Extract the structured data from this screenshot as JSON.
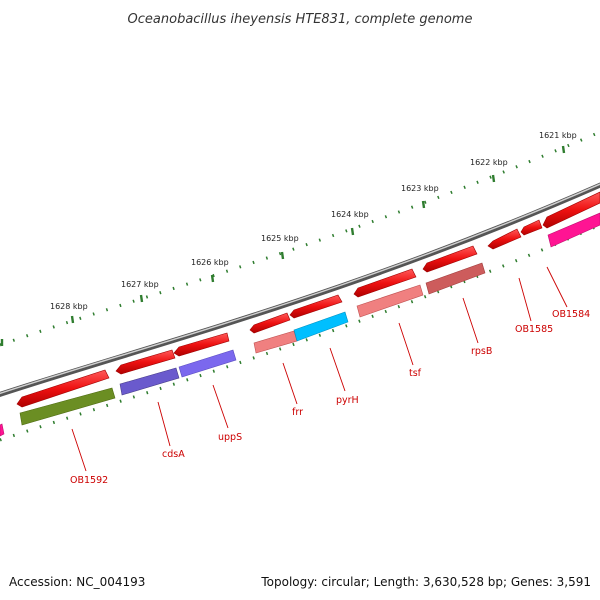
{
  "title": "Oceanobacillus iheyensis HTE831, complete genome",
  "footer": {
    "accession": "Accession: NC_004193",
    "topology": "Topology: circular; Length: 3,630,528 bp; Genes: 3,591"
  },
  "colors": {
    "forward_gene": "#ee1111",
    "backbone": "#7a7a7a",
    "tick": "#2f7d2f",
    "label": "#cc0000"
  },
  "kbp_ticks": [
    {
      "label": "1628 kbp"
    },
    {
      "label": "1627 kbp"
    },
    {
      "label": "1626 kbp"
    },
    {
      "label": "1625 kbp"
    },
    {
      "label": "1624 kbp"
    },
    {
      "label": "1623 kbp"
    },
    {
      "label": "1622 kbp"
    },
    {
      "label": "1621 kbp"
    }
  ],
  "genes": [
    {
      "name": "OB1592",
      "color": "#6b8e23"
    },
    {
      "name": "cdsA",
      "color": "#6a5acd"
    },
    {
      "name": "uppS",
      "color": "#7b68ee"
    },
    {
      "name": "frr",
      "color": "#f08080"
    },
    {
      "name": "pyrH",
      "color": "#00bfff"
    },
    {
      "name": "tsf",
      "color": "#f08080"
    },
    {
      "name": "rpsB",
      "color": "#cd5c5c"
    },
    {
      "name": "OB1585",
      "color": ""
    },
    {
      "name": "OB1584",
      "color": "#ff1493"
    }
  ]
}
